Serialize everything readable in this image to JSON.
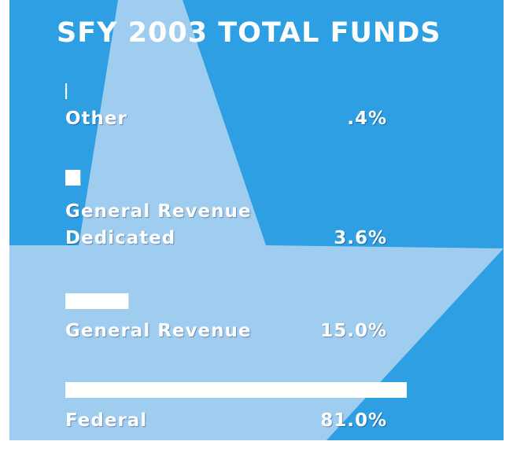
{
  "chart_data": {
    "type": "bar",
    "orientation": "horizontal",
    "title": "SFY 2003 TOTAL FUNDS",
    "categories": [
      "Other",
      "General Revenue Dedicated",
      "General Revenue",
      "Federal"
    ],
    "values": [
      0.4,
      3.6,
      15.0,
      81.0
    ],
    "value_labels": [
      ".4%",
      "3.6%",
      "15.0%",
      "81.0%"
    ],
    "color": "#ffffff"
  }
}
